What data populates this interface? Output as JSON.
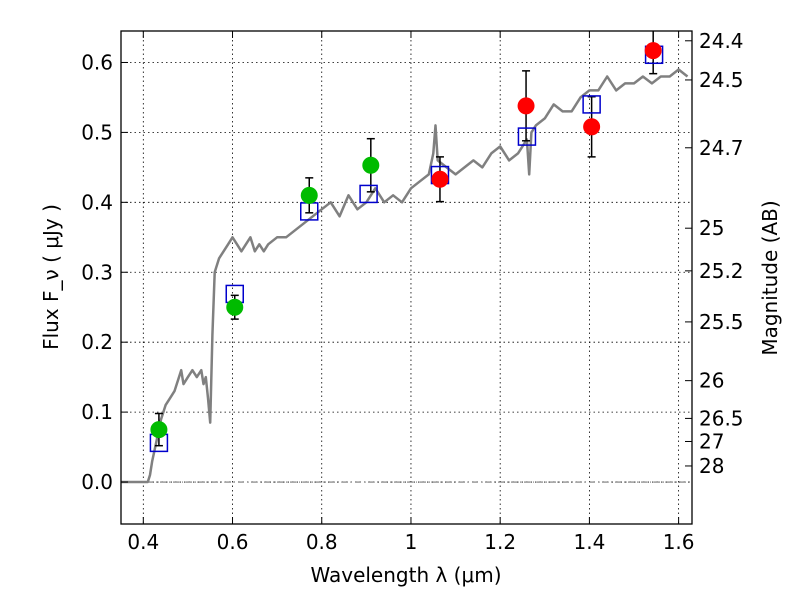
{
  "chart_data": {
    "type": "scatter",
    "title": "",
    "xlabel": "Wavelength  λ (μm)",
    "ylabel": "Flux  F_ν  ( μJy )",
    "y2label": "Magnitude (AB)",
    "xlim": [
      0.35,
      1.63
    ],
    "ylim": [
      -0.06,
      0.645
    ],
    "grid": true,
    "xticks": [
      0.4,
      0.6,
      0.8,
      1.0,
      1.2,
      1.4,
      1.6
    ],
    "xtick_labels": [
      "0.4",
      "0.6",
      "0.8",
      "1",
      "1.2",
      "1.4",
      "1.6"
    ],
    "yticks": [
      0.0,
      0.1,
      0.2,
      0.3,
      0.4,
      0.5,
      0.6
    ],
    "ytick_labels": [
      "0.0",
      "0.1",
      "0.2",
      "0.3",
      "0.4",
      "0.5",
      "0.6"
    ],
    "right_ticks": [
      {
        "label": "24.4",
        "flux": 0.631
      },
      {
        "label": "24.5",
        "flux": 0.575
      },
      {
        "label": "24.7",
        "flux": 0.478
      },
      {
        "label": "25",
        "flux": 0.363
      },
      {
        "label": "25.2",
        "flux": 0.302
      },
      {
        "label": "25.5",
        "flux": 0.229
      },
      {
        "label": "26",
        "flux": 0.145
      },
      {
        "label": "26.5",
        "flux": 0.091
      },
      {
        "label": "27",
        "flux": 0.058
      },
      {
        "label": "28",
        "flux": 0.023
      }
    ],
    "colors": {
      "template": "#808080",
      "green_points": "#00bb00",
      "red_points": "#ff0000",
      "model_boxes": "#0000cc",
      "error_bars": "#000000"
    },
    "series": [
      {
        "kind": "line",
        "x": [
          0.35,
          0.41,
          0.415,
          0.42,
          0.43,
          0.44,
          0.45,
          0.46,
          0.47,
          0.48,
          0.485,
          0.49,
          0.5,
          0.51,
          0.52,
          0.53,
          0.535,
          0.54,
          0.545,
          0.55,
          0.555,
          0.56,
          0.57,
          0.58,
          0.59,
          0.6,
          0.61,
          0.62,
          0.63,
          0.64,
          0.65,
          0.66,
          0.67,
          0.68,
          0.7,
          0.72,
          0.74,
          0.76,
          0.78,
          0.8,
          0.82,
          0.84,
          0.86,
          0.88,
          0.9,
          0.92,
          0.94,
          0.96,
          0.98,
          1.0,
          1.02,
          1.04,
          1.05,
          1.055,
          1.06,
          1.08,
          1.1,
          1.12,
          1.14,
          1.16,
          1.18,
          1.2,
          1.22,
          1.24,
          1.26,
          1.265,
          1.27,
          1.28,
          1.3,
          1.32,
          1.34,
          1.36,
          1.38,
          1.4,
          1.42,
          1.44,
          1.46,
          1.48,
          1.5,
          1.52,
          1.54,
          1.56,
          1.58,
          1.6,
          1.62
        ],
        "y": [
          0.0,
          0.0,
          0.01,
          0.03,
          0.06,
          0.09,
          0.11,
          0.12,
          0.13,
          0.15,
          0.16,
          0.14,
          0.15,
          0.16,
          0.15,
          0.16,
          0.14,
          0.15,
          0.12,
          0.085,
          0.21,
          0.3,
          0.32,
          0.33,
          0.34,
          0.35,
          0.34,
          0.33,
          0.34,
          0.35,
          0.33,
          0.34,
          0.33,
          0.34,
          0.35,
          0.35,
          0.36,
          0.37,
          0.38,
          0.39,
          0.4,
          0.38,
          0.41,
          0.39,
          0.4,
          0.42,
          0.4,
          0.41,
          0.4,
          0.42,
          0.43,
          0.44,
          0.47,
          0.51,
          0.46,
          0.45,
          0.44,
          0.45,
          0.46,
          0.45,
          0.47,
          0.48,
          0.46,
          0.47,
          0.49,
          0.44,
          0.5,
          0.51,
          0.52,
          0.54,
          0.53,
          0.53,
          0.55,
          0.56,
          0.56,
          0.58,
          0.56,
          0.57,
          0.57,
          0.58,
          0.57,
          0.58,
          0.58,
          0.59,
          0.58
        ]
      },
      {
        "kind": "points",
        "color": "green",
        "x": [
          0.435,
          0.605,
          0.772,
          0.91
        ],
        "y": [
          0.075,
          0.25,
          0.41,
          0.453
        ],
        "err": [
          0.023,
          0.017,
          0.025,
          0.038
        ]
      },
      {
        "kind": "points",
        "color": "red",
        "x": [
          1.065,
          1.258,
          1.405,
          1.543
        ],
        "y": [
          0.433,
          0.538,
          0.508,
          0.617
        ],
        "err": [
          0.032,
          0.05,
          0.043,
          0.033
        ]
      },
      {
        "kind": "boxes",
        "color": "blue",
        "x": [
          0.435,
          0.605,
          0.772,
          0.905,
          1.065,
          1.26,
          1.405,
          1.545
        ],
        "y": [
          0.056,
          0.269,
          0.387,
          0.412,
          0.439,
          0.494,
          0.54,
          0.611
        ]
      }
    ]
  }
}
